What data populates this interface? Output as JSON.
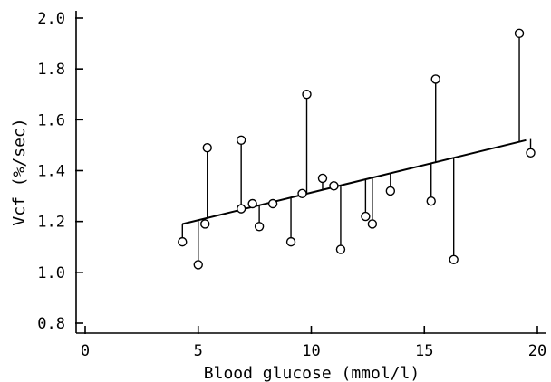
{
  "chart_data": {
    "type": "scatter",
    "title": "",
    "xlabel": "Blood glucose (mmol/l)",
    "ylabel": "Vcf (%/sec)",
    "xlim": [
      0,
      20
    ],
    "ylim": [
      0.8,
      2.0
    ],
    "xticks": [
      0,
      5,
      10,
      15,
      20
    ],
    "yticks": [
      0.8,
      1.0,
      1.2,
      1.4,
      1.6,
      1.8,
      2.0
    ],
    "xtick_labels": [
      "0",
      "5",
      "10",
      "15",
      "20"
    ],
    "ytick_labels": [
      "0.8",
      "1.0",
      "1.2",
      "1.4",
      "1.6",
      "1.8",
      "2.0"
    ],
    "grid": false,
    "marker": "open-circle",
    "residual_lines": true,
    "regression_line": {
      "x": [
        4.3,
        19.5
      ],
      "y": [
        1.19,
        1.52
      ]
    },
    "points": [
      {
        "x": 4.3,
        "y": 1.12
      },
      {
        "x": 5.0,
        "y": 1.03
      },
      {
        "x": 5.3,
        "y": 1.19
      },
      {
        "x": 5.4,
        "y": 1.49
      },
      {
        "x": 6.9,
        "y": 1.25
      },
      {
        "x": 6.9,
        "y": 1.52
      },
      {
        "x": 7.4,
        "y": 1.27
      },
      {
        "x": 7.7,
        "y": 1.18
      },
      {
        "x": 8.3,
        "y": 1.27
      },
      {
        "x": 9.1,
        "y": 1.12
      },
      {
        "x": 9.6,
        "y": 1.31
      },
      {
        "x": 9.8,
        "y": 1.7
      },
      {
        "x": 10.5,
        "y": 1.37
      },
      {
        "x": 11.0,
        "y": 1.34
      },
      {
        "x": 11.3,
        "y": 1.09
      },
      {
        "x": 12.4,
        "y": 1.22
      },
      {
        "x": 12.7,
        "y": 1.19
      },
      {
        "x": 13.5,
        "y": 1.32
      },
      {
        "x": 15.3,
        "y": 1.28
      },
      {
        "x": 15.5,
        "y": 1.76
      },
      {
        "x": 16.3,
        "y": 1.05
      },
      {
        "x": 19.2,
        "y": 1.94
      },
      {
        "x": 19.7,
        "y": 1.47
      }
    ]
  }
}
